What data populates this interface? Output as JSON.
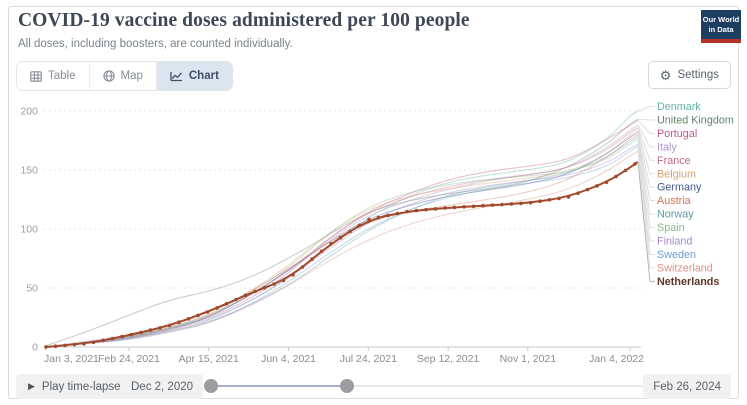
{
  "header": {
    "title": "COVID-19 vaccine doses administered per 100 people",
    "subtitle": "All doses, including boosters, are counted individually.",
    "logo": {
      "line1": "Our World",
      "line2": "in Data",
      "bg_color": "#1d3d63",
      "stripe_color": "#b5322a"
    }
  },
  "toolbar": {
    "tabs": [
      {
        "label": "Table",
        "icon": "table-icon",
        "active": false
      },
      {
        "label": "Map",
        "icon": "globe-icon",
        "active": false
      },
      {
        "label": "Chart",
        "icon": "line-chart-icon",
        "active": true
      }
    ],
    "settings_label": "Settings",
    "settings_icon": "gear-icon",
    "gear_glyph": "⚙",
    "active_tab_bg": "#dbe5f0"
  },
  "chart_data": {
    "type": "line",
    "title": "COVID-19 vaccine doses administered per 100 people",
    "subtitle": "All doses, including boosters, are counted individually.",
    "xlabel": "",
    "ylabel": "",
    "grid": true,
    "legend_position": "right",
    "highlight": "Netherlands",
    "ylim": [
      0,
      200
    ],
    "y_ticks": [
      0,
      50,
      100,
      150,
      200
    ],
    "x_unit_days_since": "Jan 3, 2021",
    "xlim_days": [
      0,
      371
    ],
    "x_ticks": [
      {
        "day": 0,
        "label": "Jan 3, 2021"
      },
      {
        "day": 52,
        "label": "Feb 24, 2021"
      },
      {
        "day": 102,
        "label": "Apr 15, 2021"
      },
      {
        "day": 152,
        "label": "Jun 4, 2021"
      },
      {
        "day": 202,
        "label": "Jul 24, 2021"
      },
      {
        "day": 252,
        "label": "Sep 12, 2021"
      },
      {
        "day": 302,
        "label": "Nov 1, 2021"
      },
      {
        "day": 366,
        "label": "Jan 4, 2022"
      }
    ],
    "days": [
      0,
      26,
      52,
      77,
      102,
      127,
      152,
      177,
      202,
      227,
      252,
      277,
      302,
      327,
      352,
      366,
      371
    ],
    "series": [
      {
        "name": "Denmark",
        "color": "#62b3a2",
        "values": [
          0,
          4,
          8,
          15,
          23,
          38,
          58,
          85,
          110,
          128,
          140,
          146,
          150,
          156,
          176,
          196,
          200
        ]
      },
      {
        "name": "United Kingdom",
        "color": "#68806b",
        "values": [
          1,
          13,
          27,
          40,
          47,
          58,
          75,
          95,
          115,
          124,
          130,
          134,
          140,
          152,
          172,
          189,
          193
        ]
      },
      {
        "name": "Portugal",
        "color": "#c2548e",
        "values": [
          0,
          4,
          9,
          16,
          24,
          40,
          62,
          92,
          115,
          130,
          142,
          149,
          153,
          158,
          176,
          188,
          192
        ]
      },
      {
        "name": "Italy",
        "color": "#ab94c9",
        "values": [
          0,
          5,
          10,
          17,
          26,
          43,
          64,
          90,
          112,
          124,
          134,
          141,
          146,
          151,
          169,
          184,
          188
        ]
      },
      {
        "name": "France",
        "color": "#bf6b80",
        "values": [
          0,
          3,
          7,
          14,
          25,
          43,
          65,
          92,
          114,
          127,
          136,
          142,
          146,
          151,
          167,
          182,
          186
        ]
      },
      {
        "name": "Belgium",
        "color": "#d8a26e",
        "values": [
          0,
          4,
          9,
          16,
          27,
          46,
          69,
          97,
          117,
          128,
          134,
          139,
          143,
          148,
          163,
          180,
          184
        ]
      },
      {
        "name": "Germany",
        "color": "#42598c",
        "values": [
          0,
          3,
          8,
          15,
          25,
          43,
          65,
          89,
          109,
          120,
          128,
          133,
          138,
          146,
          164,
          178,
          182
        ]
      },
      {
        "name": "Austria",
        "color": "#d8705b",
        "values": [
          0,
          3,
          9,
          18,
          29,
          46,
          66,
          89,
          106,
          115,
          120,
          125,
          131,
          141,
          161,
          176,
          180
        ]
      },
      {
        "name": "Norway",
        "color": "#5e9aaa",
        "values": [
          0,
          3,
          7,
          13,
          21,
          35,
          52,
          76,
          99,
          116,
          129,
          136,
          141,
          147,
          161,
          174,
          178
        ]
      },
      {
        "name": "Spain",
        "color": "#86bb8a",
        "values": [
          0,
          4,
          9,
          16,
          26,
          45,
          67,
          96,
          119,
          131,
          138,
          142,
          145,
          148,
          159,
          172,
          176
        ]
      },
      {
        "name": "Finland",
        "color": "#a388cc",
        "values": [
          0,
          3,
          7,
          14,
          22,
          38,
          58,
          83,
          106,
          121,
          131,
          137,
          141,
          145,
          156,
          168,
          172
        ]
      },
      {
        "name": "Sweden",
        "color": "#6d9ed1",
        "values": [
          0,
          3,
          6,
          12,
          20,
          35,
          55,
          79,
          101,
          116,
          127,
          134,
          139,
          143,
          153,
          166,
          170
        ]
      },
      {
        "name": "Switzerland",
        "color": "#df8f83",
        "values": [
          0,
          3,
          7,
          13,
          20,
          34,
          52,
          73,
          91,
          104,
          113,
          119,
          125,
          133,
          149,
          162,
          166
        ]
      },
      {
        "name": "Netherlands",
        "color": "#a2492c",
        "label_color": "#5f3527",
        "focus": true,
        "values": [
          0,
          3,
          10,
          18,
          30,
          45,
          58,
          86,
          108,
          115,
          118,
          120,
          122,
          127,
          140,
          152,
          157
        ]
      }
    ]
  },
  "timeline": {
    "play_label": "Play time-lapse",
    "play_icon": "play-icon",
    "play_glyph": "▶",
    "start_date": "Dec 2, 2020",
    "end_date": "Feb 26, 2024",
    "handles_pct": [
      1.5,
      32
    ],
    "fill_color": "#a3b1d1"
  }
}
